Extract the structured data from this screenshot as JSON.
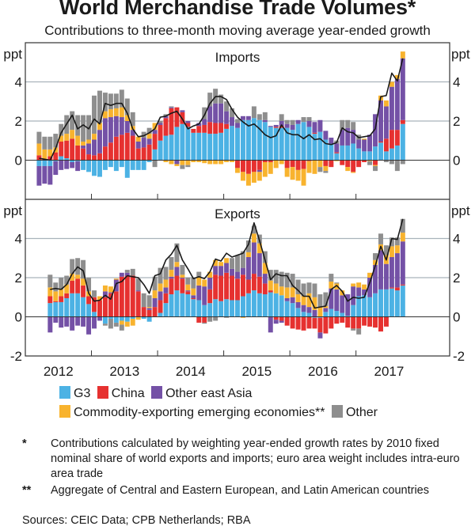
{
  "chart_data": {
    "type": "bar",
    "stacked": true,
    "title": "World Merchandise Trade Volumes*",
    "subtitle": "Contributions to three-month moving average year-ended growth",
    "x_tick_labels": [
      "2012",
      "2013",
      "2014",
      "2015",
      "2016",
      "2017"
    ],
    "x_range_months": [
      "2011-07",
      "2017-03"
    ],
    "series_names": [
      "G3",
      "China",
      "Other east Asia",
      "Commodity-exporting emerging economies**",
      "Other"
    ],
    "colors": {
      "G3": "#4cb2e4",
      "China": "#e63130",
      "Other east Asia": "#7451a6",
      "Commodity-exporting emerging economies**": "#f8b32e",
      "Other": "#8e8e8e",
      "line": "#1a1a1a"
    },
    "line_name": "Total",
    "panels": [
      {
        "name": "Imports",
        "ylabel": "ppt",
        "ylim": [
          -2,
          6
        ],
        "yticks": [
          0,
          2,
          4
        ],
        "grid": true,
        "bars": [
          [
            -0.3,
            0.25,
            -1.0,
            0.6,
            0.6
          ],
          [
            -0.3,
            0.05,
            -0.9,
            0.5,
            0.65
          ],
          [
            -0.3,
            0.2,
            -0.95,
            0.35,
            0.65
          ],
          [
            -0.05,
            0.4,
            -0.7,
            0.25,
            0.7
          ],
          [
            0.2,
            0.75,
            -0.5,
            0.3,
            0.6
          ],
          [
            0.1,
            0.9,
            -0.45,
            0.35,
            0.95
          ],
          [
            -0.1,
            1.1,
            -0.3,
            0.45,
            0.95
          ],
          [
            -0.05,
            0.75,
            -0.5,
            0.5,
            1.05
          ],
          [
            -0.5,
            0.6,
            0.15,
            0.2,
            1.35
          ],
          [
            -0.6,
            0.3,
            0.55,
            0.2,
            1.25
          ],
          [
            -0.8,
            0.25,
            0.8,
            0.3,
            1.95
          ],
          [
            -0.85,
            0.35,
            1.2,
            0.35,
            1.65
          ],
          [
            -0.5,
            0.7,
            1.45,
            0.35,
            0.95
          ],
          [
            -0.35,
            0.9,
            1.3,
            0.4,
            0.8
          ],
          [
            -0.55,
            1.2,
            1.05,
            0.4,
            0.75
          ],
          [
            -0.35,
            1.3,
            0.9,
            0.5,
            0.9
          ],
          [
            -0.9,
            1.4,
            0.6,
            0.3,
            0.85
          ],
          [
            -0.5,
            1.25,
            0.3,
            0.2,
            0.7
          ],
          [
            -0.5,
            0.6,
            0.35,
            0.25,
            0.0
          ],
          [
            -0.5,
            0.65,
            0.5,
            0.0,
            0.3
          ],
          [
            -0.1,
            0.8,
            0.3,
            0.25,
            0.3
          ],
          [
            0.55,
            0.8,
            0.2,
            0.35,
            -0.35
          ],
          [
            1.0,
            0.8,
            0.1,
            0.0,
            0.1
          ],
          [
            1.25,
            0.9,
            0.1,
            -0.1,
            0.1
          ],
          [
            1.3,
            1.35,
            0.05,
            -0.2,
            0.05
          ],
          [
            1.7,
            1.0,
            -0.2,
            -0.1,
            0.0
          ],
          [
            1.85,
            0.6,
            0.1,
            -0.25,
            -0.2
          ],
          [
            1.7,
            0.2,
            0.1,
            -0.25,
            -0.1
          ],
          [
            1.4,
            0.2,
            0.0,
            -0.1,
            0.0
          ],
          [
            1.4,
            0.35,
            0.15,
            -0.1,
            0.0
          ],
          [
            1.4,
            0.4,
            0.3,
            -0.15,
            0.6
          ],
          [
            1.35,
            0.6,
            0.8,
            -0.2,
            0.7
          ],
          [
            1.35,
            0.55,
            1.0,
            -0.2,
            0.75
          ],
          [
            1.4,
            0.5,
            1.0,
            -0.2,
            0.45
          ],
          [
            1.6,
            0.25,
            0.65,
            -0.1,
            0.5
          ],
          [
            1.75,
            0.0,
            0.45,
            -0.1,
            0.45
          ],
          [
            1.65,
            -0.4,
            0.25,
            -0.25,
            0.2
          ],
          [
            2.05,
            -0.6,
            0.2,
            -0.45,
            0.0
          ],
          [
            2.05,
            -0.7,
            0.2,
            -0.6,
            0.0
          ],
          [
            2.15,
            -0.6,
            0.0,
            -0.55,
            0.6
          ],
          [
            2.05,
            -0.5,
            -0.1,
            -0.45,
            0.3
          ],
          [
            1.95,
            -0.1,
            0.1,
            -0.75,
            0.4
          ],
          [
            1.7,
            -0.1,
            0.05,
            -0.6,
            0.0
          ],
          [
            1.65,
            0.05,
            0.1,
            -0.4,
            0.0
          ],
          [
            1.65,
            0.1,
            0.25,
            -0.2,
            0.35
          ],
          [
            1.65,
            -0.4,
            0.2,
            -0.45,
            0.2
          ],
          [
            1.55,
            -0.35,
            0.25,
            -0.65,
            0.25
          ],
          [
            1.85,
            -0.5,
            0.2,
            -0.55,
            0.0
          ],
          [
            1.95,
            -0.45,
            0.0,
            -0.85,
            0.25
          ],
          [
            1.7,
            -0.05,
            0.3,
            -0.6,
            0.2
          ],
          [
            1.35,
            0.05,
            0.55,
            -0.7,
            0.0
          ],
          [
            1.45,
            0.0,
            0.6,
            -0.35,
            -0.25
          ],
          [
            1.05,
            -0.3,
            0.45,
            -0.25,
            -0.1
          ],
          [
            0.85,
            -0.35,
            0.3,
            0.0,
            0.0
          ],
          [
            0.35,
            0.05,
            0.45,
            -0.05,
            0.15
          ],
          [
            0.75,
            -0.25,
            0.8,
            0.0,
            0.5
          ],
          [
            0.75,
            -0.35,
            0.9,
            -0.2,
            0.4
          ],
          [
            0.85,
            -0.6,
            0.7,
            -0.05,
            0.4
          ],
          [
            0.6,
            -0.35,
            0.45,
            0.0,
            0.25
          ],
          [
            0.45,
            -0.1,
            0.6,
            0.05,
            0.0
          ],
          [
            0.45,
            0.0,
            0.85,
            -0.05,
            -0.2
          ],
          [
            0.7,
            -0.25,
            1.65,
            -0.05,
            -0.25
          ],
          [
            0.9,
            0.05,
            2.1,
            0.25,
            0.0
          ],
          [
            0.45,
            0.65,
            1.65,
            0.3,
            -0.1
          ],
          [
            0.6,
            0.95,
            2.2,
            0.25,
            -0.2
          ],
          [
            0.75,
            0.8,
            2.6,
            0.2,
            -0.55
          ],
          [
            1.85,
            0.2,
            3.15,
            0.35,
            -0.2
          ]
        ],
        "line": [
          0.1,
          0.05,
          0.0,
          0.6,
          1.4,
          1.85,
          2.3,
          1.6,
          1.8,
          1.6,
          2.1,
          1.85,
          2.9,
          2.8,
          2.9,
          2.9,
          2.4,
          1.6,
          1.2,
          1.25,
          1.4,
          1.6,
          2.2,
          2.25,
          2.4,
          2.5,
          2.1,
          1.6,
          1.75,
          1.85,
          2.3,
          2.9,
          3.25,
          3.25,
          3.1,
          2.6,
          2.2,
          1.95,
          1.75,
          1.85,
          1.6,
          1.3,
          1.15,
          1.25,
          1.8,
          1.4,
          1.3,
          1.3,
          1.1,
          1.3,
          1.05,
          1.1,
          0.85,
          0.8,
          0.9,
          1.65,
          1.45,
          1.4,
          1.15,
          1.2,
          1.25,
          1.6,
          3.25,
          3.3,
          4.45,
          4.05,
          5.2
        ]
      },
      {
        "name": "Exports",
        "ylabel": "ppt",
        "ylim": [
          -2,
          6
        ],
        "yticks": [
          -2,
          0,
          2,
          4
        ],
        "grid": true,
        "bars": [
          [
            0.7,
            0.35,
            -0.8,
            0.45,
            0.65
          ],
          [
            0.75,
            0.05,
            -0.3,
            0.5,
            0.45
          ],
          [
            0.75,
            0.3,
            -0.55,
            0.35,
            0.6
          ],
          [
            0.95,
            0.25,
            -0.5,
            0.45,
            0.45
          ],
          [
            1.2,
            0.65,
            -0.7,
            0.35,
            0.75
          ],
          [
            1.2,
            0.75,
            -0.45,
            0.2,
            0.85
          ],
          [
            1.0,
            0.6,
            -0.5,
            0.35,
            0.95
          ],
          [
            0.65,
            0.4,
            -0.9,
            0.25,
            0.7
          ],
          [
            0.25,
            0.75,
            -0.6,
            0.0,
            0.35
          ],
          [
            0.0,
            0.85,
            -0.2,
            0.2,
            0.0
          ],
          [
            -0.35,
            1.0,
            0.3,
            0.3,
            -0.1
          ],
          [
            -0.1,
            1.2,
            0.05,
            0.3,
            -0.5
          ],
          [
            -0.3,
            1.3,
            0.6,
            0.05,
            -0.2
          ],
          [
            -0.2,
            2.05,
            0.2,
            -0.2,
            -0.3
          ],
          [
            -0.25,
            2.1,
            0.15,
            -0.25,
            0.15
          ],
          [
            -0.1,
            2.1,
            0.0,
            -0.35,
            0.35
          ],
          [
            0.0,
            1.3,
            0.05,
            -0.15,
            0.6
          ],
          [
            -0.1,
            0.5,
            0.0,
            0.0,
            0.7
          ],
          [
            -0.25,
            0.35,
            0.1,
            0.05,
            0.6
          ],
          [
            0.0,
            0.5,
            0.45,
            0.4,
            0.7
          ],
          [
            0.2,
            0.65,
            0.45,
            0.4,
            0.8
          ],
          [
            0.7,
            0.5,
            0.3,
            0.4,
            0.65
          ],
          [
            1.15,
            0.8,
            0.1,
            0.35,
            0.65
          ],
          [
            1.35,
            0.75,
            0.45,
            0.25,
            0.95
          ],
          [
            1.2,
            0.75,
            0.05,
            0.15,
            0.5
          ],
          [
            1.15,
            0.15,
            0.05,
            0.3,
            0.35
          ],
          [
            0.9,
            0.05,
            0.15,
            0.35,
            0.55
          ],
          [
            0.85,
            -0.3,
            0.75,
            0.4,
            0.3
          ],
          [
            0.6,
            -0.3,
            0.95,
            0.35,
            -0.05
          ],
          [
            0.7,
            0.7,
            0.6,
            0.3,
            -0.25
          ],
          [
            0.9,
            1.25,
            0.45,
            0.3,
            -0.2
          ],
          [
            0.8,
            1.3,
            0.5,
            0.2,
            0.0
          ],
          [
            0.9,
            1.35,
            0.5,
            0.25,
            -0.05
          ],
          [
            0.85,
            1.25,
            0.35,
            0.0,
            0.55
          ],
          [
            0.85,
            1.1,
            0.35,
            0.0,
            0.85
          ],
          [
            1.05,
            1.1,
            0.35,
            -0.05,
            0.85
          ],
          [
            1.2,
            0.7,
            1.15,
            0.25,
            0.6
          ],
          [
            1.35,
            0.85,
            1.6,
            0.45,
            0.4
          ],
          [
            1.2,
            0.85,
            1.2,
            0.5,
            0.45
          ],
          [
            1.15,
            0.55,
            0.5,
            0.55,
            0.6
          ],
          [
            1.25,
            0.1,
            -0.8,
            0.5,
            0.55
          ],
          [
            1.2,
            -0.15,
            -0.2,
            0.5,
            0.7
          ],
          [
            1.1,
            -0.2,
            -0.1,
            0.45,
            0.75
          ],
          [
            0.8,
            -0.45,
            0.15,
            0.55,
            0.75
          ],
          [
            0.7,
            -0.6,
            0.3,
            0.5,
            0.7
          ],
          [
            0.45,
            -0.65,
            0.3,
            0.4,
            0.75
          ],
          [
            0.25,
            -0.7,
            0.35,
            0.45,
            0.65
          ],
          [
            0.2,
            -0.6,
            0.3,
            0.7,
            0.55
          ],
          [
            -0.05,
            -0.55,
            0.35,
            0.65,
            0.7
          ],
          [
            -0.05,
            -0.75,
            -0.3,
            0.5,
            0.65
          ],
          [
            0.25,
            -0.85,
            0.2,
            0.1,
            0.7
          ],
          [
            0.4,
            -0.6,
            1.05,
            0.35,
            0.4
          ],
          [
            0.3,
            -0.35,
            1.1,
            0.3,
            0.05
          ],
          [
            0.2,
            -0.3,
            0.9,
            0.25,
            0.0
          ],
          [
            0.05,
            -0.55,
            1.1,
            0.0,
            0.0
          ],
          [
            0.6,
            -0.6,
            0.95,
            0.15,
            -0.1
          ],
          [
            1.05,
            -0.6,
            0.45,
            0.25,
            -0.3
          ],
          [
            1.1,
            -0.45,
            0.3,
            0.25,
            0.0
          ],
          [
            1.0,
            -0.5,
            1.0,
            0.25,
            0.0
          ],
          [
            1.2,
            -0.55,
            1.45,
            0.25,
            0.35
          ],
          [
            1.4,
            -0.75,
            2.0,
            0.3,
            0.55
          ],
          [
            1.4,
            -0.5,
            1.3,
            0.45,
            0.5
          ],
          [
            1.45,
            0.05,
            1.55,
            0.55,
            0.45
          ],
          [
            1.35,
            0.15,
            1.75,
            0.4,
            0.4
          ],
          [
            1.6,
            0.05,
            2.2,
            0.45,
            0.7
          ]
        ],
        "line": [
          1.4,
          1.45,
          1.4,
          1.65,
          2.2,
          2.55,
          2.35,
          1.2,
          0.8,
          0.85,
          1.1,
          0.9,
          1.7,
          1.8,
          2.1,
          2.05,
          2.0,
          1.65,
          1.2,
          2.1,
          2.2,
          2.9,
          3.2,
          3.65,
          2.9,
          2.45,
          1.95,
          2.05,
          1.95,
          2.3,
          2.95,
          2.85,
          3.25,
          3.05,
          3.15,
          3.25,
          3.7,
          4.8,
          3.9,
          2.9,
          1.9,
          2.2,
          2.1,
          2.1,
          1.6,
          1.35,
          1.05,
          1.05,
          0.45,
          0.5,
          0.55,
          1.4,
          1.6,
          1.3,
          0.8,
          1.0,
          0.95,
          1.0,
          1.75,
          2.6,
          3.6,
          2.9,
          4.0,
          3.95,
          5.0
        ]
      }
    ]
  },
  "legend": {
    "items": [
      {
        "label": "G3",
        "color": "#4cb2e4"
      },
      {
        "label": "China",
        "color": "#e63130"
      },
      {
        "label": "Other east Asia",
        "color": "#7451a6"
      },
      {
        "label": "Commodity-exporting emerging economies**",
        "color": "#f8b32e"
      },
      {
        "label": "Other",
        "color": "#8e8e8e"
      }
    ]
  },
  "notes": [
    {
      "mark": "*",
      "text": "Contributions calculated by weighting year-ended growth rates by 2010 fixed nominal share of world exports and imports; euro area weight includes intra-euro area trade"
    },
    {
      "mark": "**",
      "text": "Aggregate of Central and Eastern European, and Latin American countries"
    }
  ],
  "sources": "Sources: CEIC Data; CPB Netherlands; RBA"
}
